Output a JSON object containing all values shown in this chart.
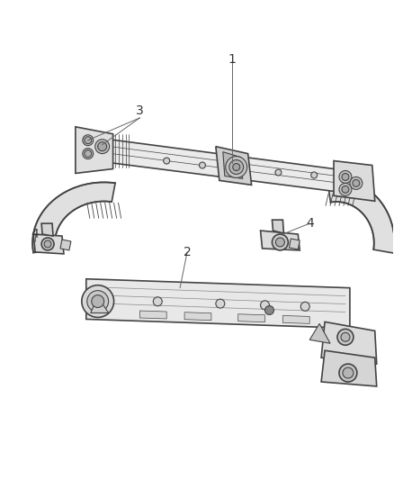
{
  "background_color": "#ffffff",
  "figure_width": 4.38,
  "figure_height": 5.33,
  "dpi": 100,
  "line_color": "#444444",
  "fill_light": "#f0f0f0",
  "fill_mid": "#e0e0e0",
  "fill_dark": "#cccccc",
  "label_color": "#333333",
  "label_fontsize": 10,
  "callout_color": "#666666"
}
